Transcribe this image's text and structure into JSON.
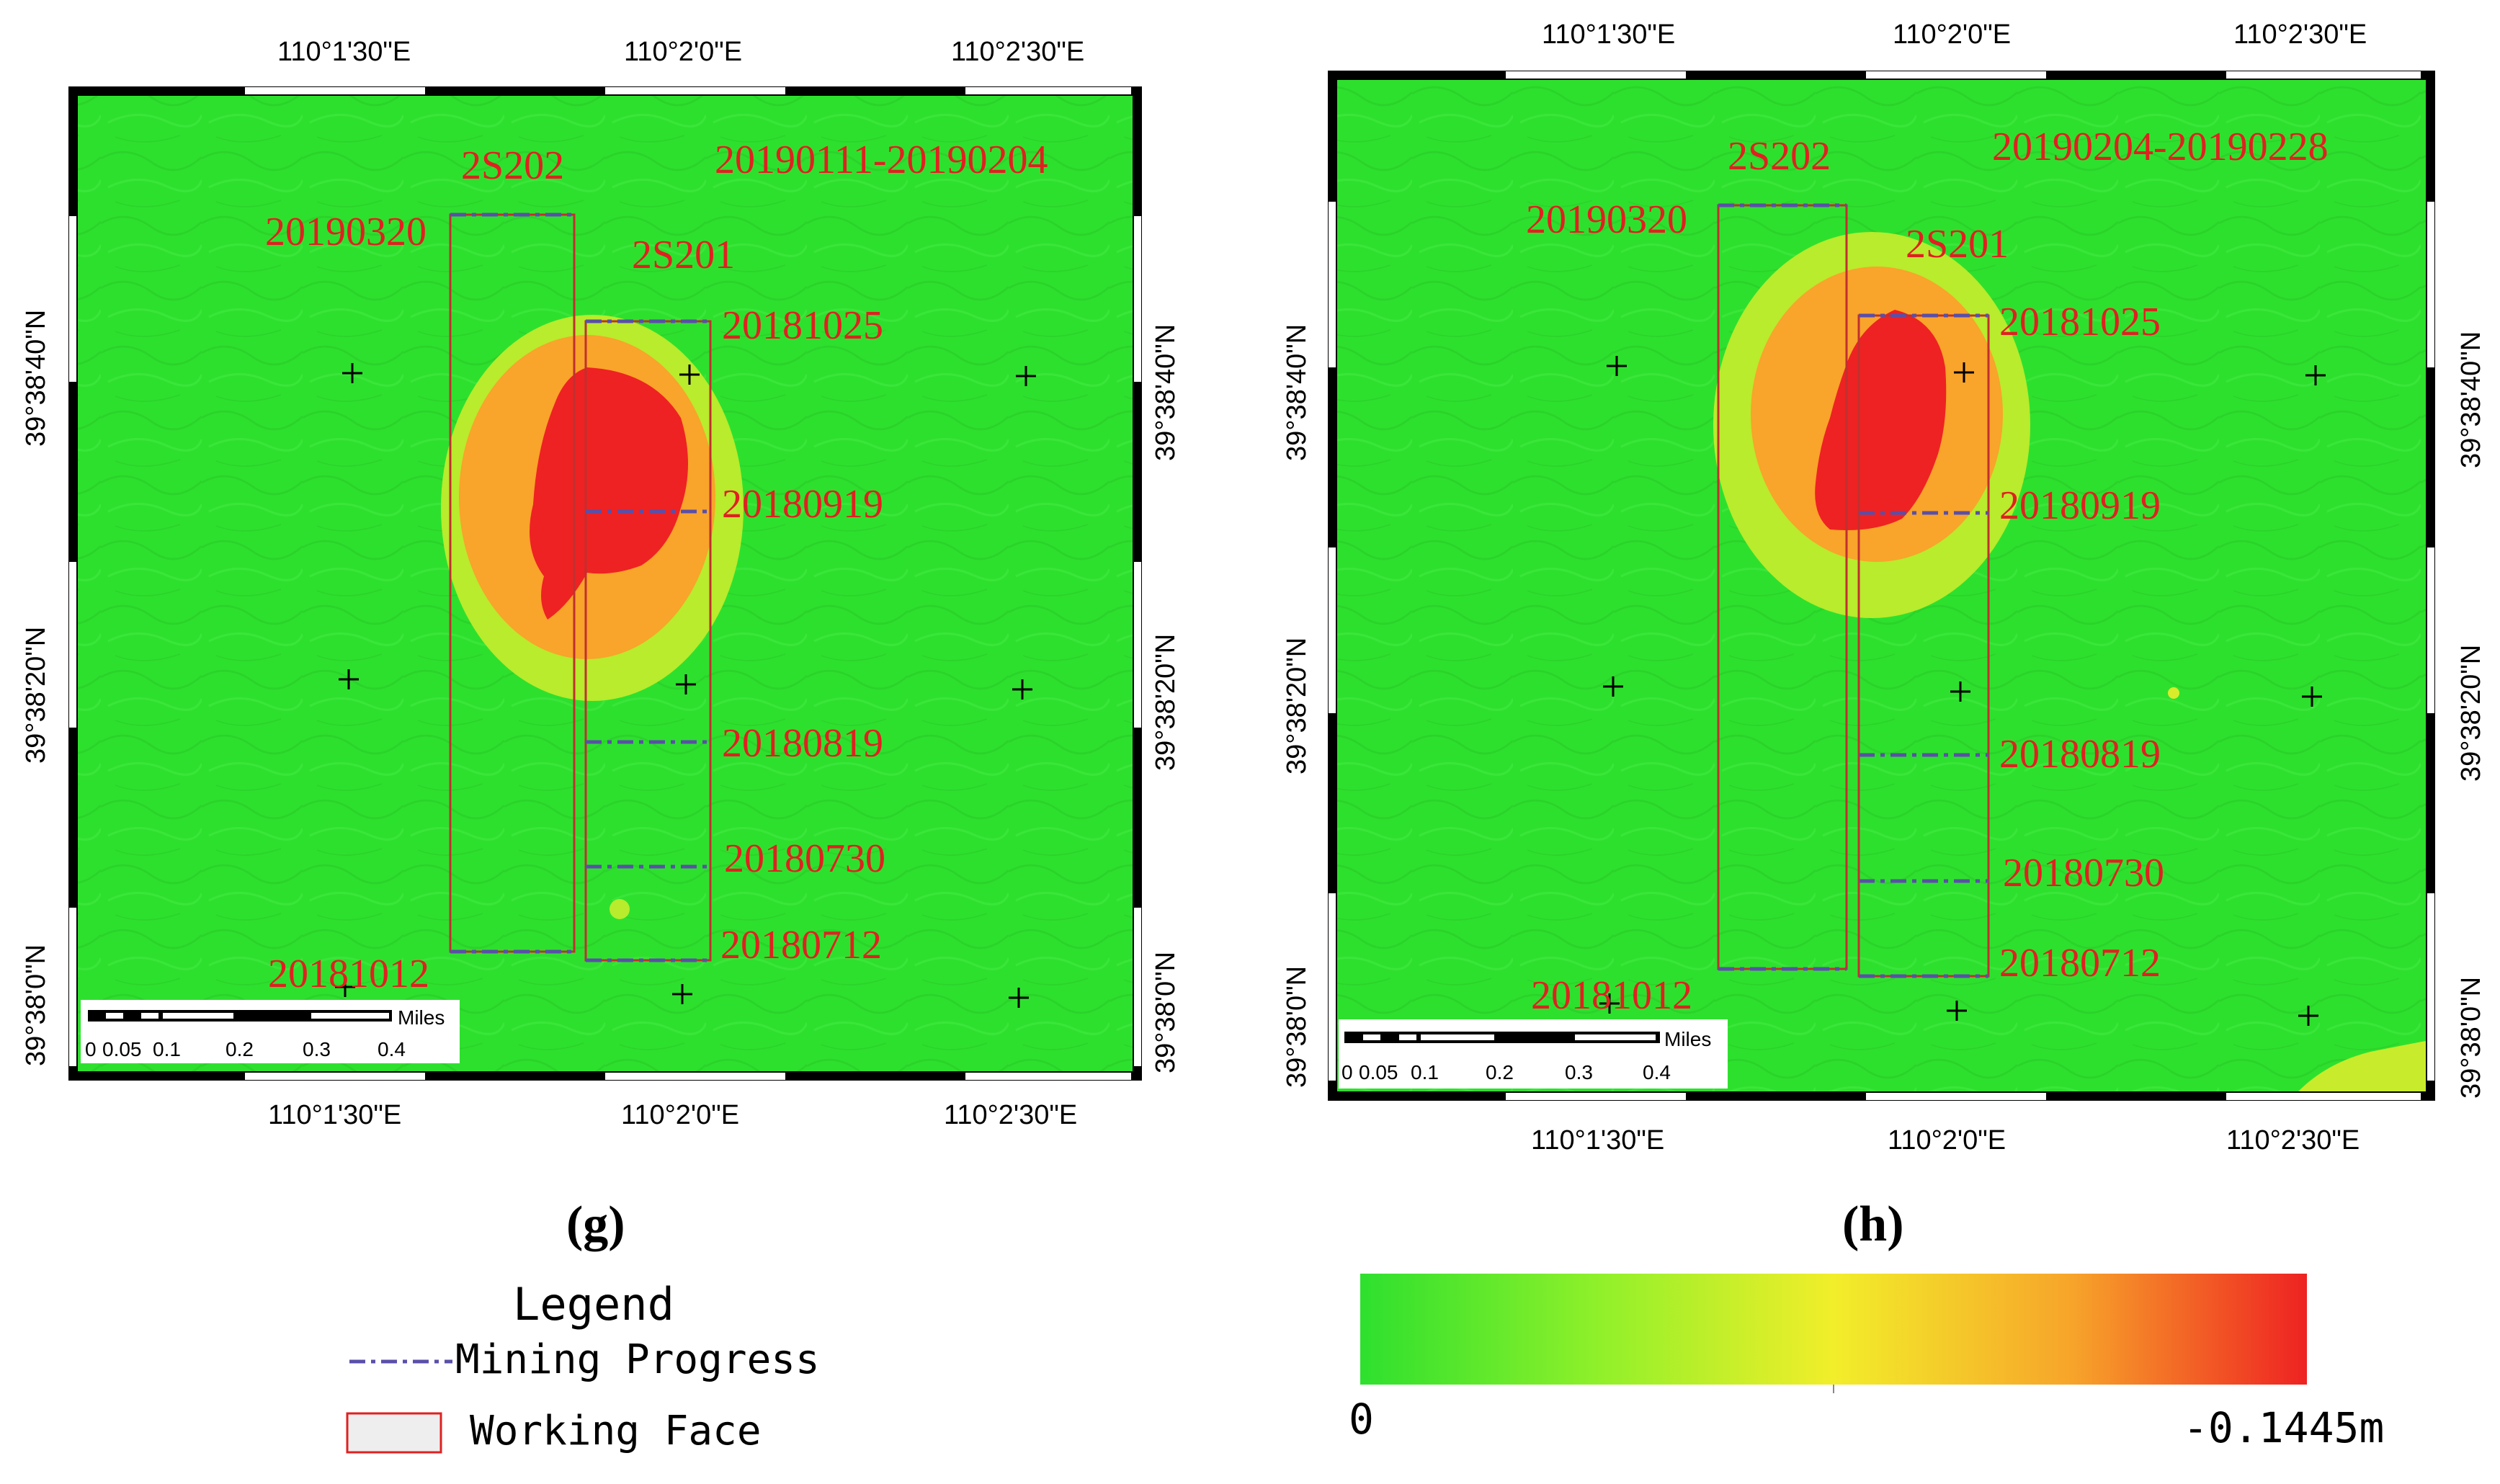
{
  "colors": {
    "ground": "#2ee02e",
    "low": "#b8ec2c",
    "mid": "#f9a42a",
    "high": "#ee2222",
    "label": "#e02020",
    "progress": "#5a4fa8",
    "face": "#c03030"
  },
  "panel_g": {
    "caption": "(g)",
    "date_range": "20190111-20190204",
    "lon_labels": [
      "110°1'30\"E",
      "110°2'0\"E",
      "110°2'30\"E"
    ],
    "lat_labels": [
      "39°38'40\"N",
      "39°38'20\"N",
      "39°38'0\"N"
    ],
    "face_2s202": "2S202",
    "face_2s201": "2S201",
    "date_2s202_top": "20190320",
    "date_2s202_bottom": "20181012",
    "progress_dates": [
      "20181025",
      "20180919",
      "20180819",
      "20180730",
      "20180712"
    ],
    "scale_unit": "Miles",
    "scale_ticks": [
      "0",
      "0.05",
      "0.1",
      "0.2",
      "0.3",
      "0.4"
    ]
  },
  "panel_h": {
    "caption": "(h)",
    "date_range": "20190204-20190228",
    "lon_labels": [
      "110°1'30\"E",
      "110°2'0\"E",
      "110°2'30\"E"
    ],
    "lat_labels": [
      "39°38'40\"N",
      "39°38'20\"N",
      "39°38'0\"N"
    ],
    "face_2s202": "2S202",
    "face_2s201": "2S201",
    "date_2s202_top": "20190320",
    "date_2s202_bottom": "20181012",
    "progress_dates": [
      "20181025",
      "20180919",
      "20180819",
      "20180730",
      "20180712"
    ],
    "scale_unit": "Miles",
    "scale_ticks": [
      "0",
      "0.05",
      "0.1",
      "0.2",
      "0.3",
      "0.4"
    ]
  },
  "legend": {
    "title": "Legend",
    "mining_progress": "Mining Progress",
    "working_face": "Working Face"
  },
  "colorbar": {
    "min_label": "0",
    "max_label": "-0.1445m"
  }
}
